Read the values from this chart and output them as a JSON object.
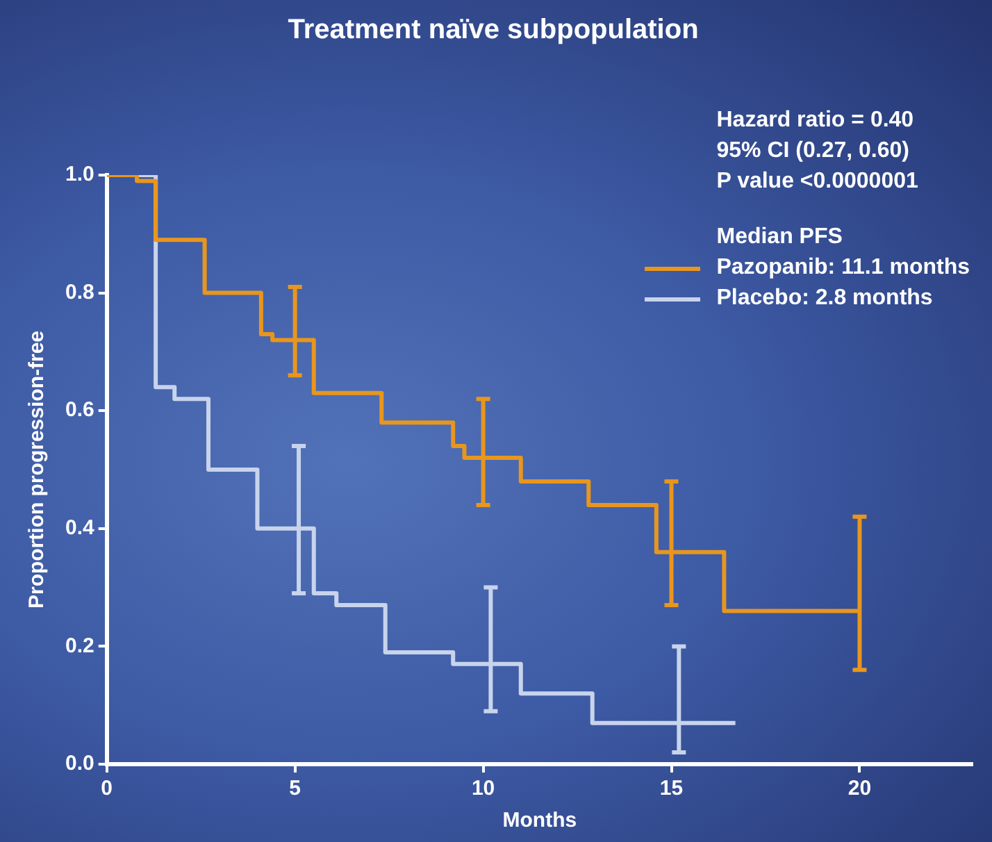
{
  "chart_data": {
    "type": "step",
    "title": "Treatment naïve subpopulation",
    "xlabel": "Months",
    "ylabel": "Proportion progression-free",
    "legend_title": "Median PFS",
    "legend": "top right",
    "annotations": [
      "Hazard ratio = 0.40",
      "95% CI (0.27, 0.60)",
      "P value <0.0000001"
    ],
    "xlim": [
      0,
      23
    ],
    "xticks": [
      0,
      5,
      10,
      15,
      20
    ],
    "ylim": [
      0,
      1
    ],
    "yticks": [
      {
        "value": 0,
        "label": "0.0"
      },
      {
        "value": 0.2,
        "label": "0.2"
      },
      {
        "value": 0.4,
        "label": "0.4"
      },
      {
        "value": 0.6,
        "label": "0.6"
      },
      {
        "value": 0.8,
        "label": "0.8"
      },
      {
        "value": 1,
        "label": "1.0"
      }
    ],
    "series": [
      {
        "name": "Pazopanib: 11.1 months",
        "color": "#e8961e",
        "x": [
          0,
          0.8,
          1.3,
          2.6,
          4.1,
          4.4,
          5,
          5.5,
          7.3,
          9.2,
          9.5,
          10,
          11.0,
          12.8,
          14.6,
          15,
          16.4,
          20
        ],
        "values": [
          1.0,
          0.99,
          0.89,
          0.8,
          0.73,
          0.72,
          0.72,
          0.63,
          0.58,
          0.54,
          0.52,
          0.52,
          0.48,
          0.44,
          0.36,
          0.36,
          0.26,
          0.26
        ],
        "errors": [
          null,
          null,
          null,
          null,
          null,
          null,
          [
            0.66,
            0.81
          ],
          null,
          null,
          null,
          null,
          [
            0.44,
            0.62
          ],
          null,
          null,
          null,
          [
            0.27,
            0.48
          ],
          null,
          [
            0.16,
            0.42
          ]
        ]
      },
      {
        "name": "Placebo: 2.8 months",
        "color": "#c8d4ec",
        "x": [
          0,
          1.3,
          1.8,
          2.7,
          4.0,
          5.1,
          5.5,
          6.1,
          7.4,
          9.2,
          10.2,
          11.0,
          12.9,
          15.2,
          16.7
        ],
        "values": [
          1.0,
          0.64,
          0.62,
          0.5,
          0.4,
          0.4,
          0.29,
          0.27,
          0.19,
          0.17,
          0.17,
          0.12,
          0.07,
          0.07,
          0.07
        ],
        "errors": [
          null,
          null,
          null,
          null,
          null,
          [
            0.29,
            0.54
          ],
          null,
          null,
          null,
          null,
          [
            0.09,
            0.3
          ],
          null,
          null,
          [
            0.02,
            0.2
          ],
          null
        ]
      }
    ]
  }
}
